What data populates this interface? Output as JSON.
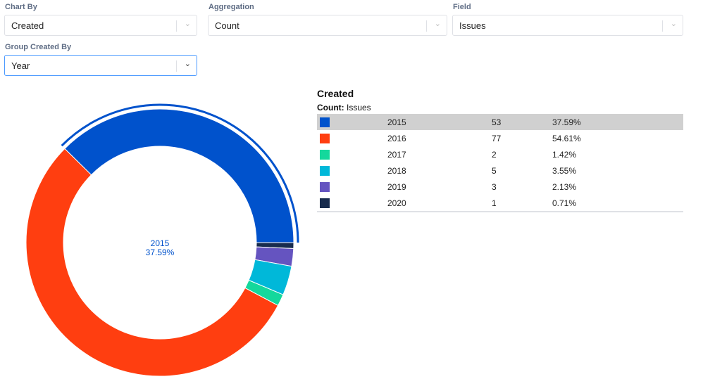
{
  "controls": {
    "chart_by": {
      "label": "Chart By",
      "value": "Created"
    },
    "aggregation": {
      "label": "Aggregation",
      "value": "Count"
    },
    "field": {
      "label": "Field",
      "value": "Issues"
    },
    "group_by": {
      "label": "Group Created By",
      "value": "Year"
    }
  },
  "chart_data": {
    "type": "pie",
    "donut": true,
    "title": "Created",
    "subtitle_key": "Count:",
    "subtitle_value": "Issues",
    "categories": [
      "2015",
      "2016",
      "2017",
      "2018",
      "2019",
      "2020"
    ],
    "values": [
      53,
      77,
      2,
      5,
      3,
      1
    ],
    "percents": [
      "37.59%",
      "54.61%",
      "1.42%",
      "3.55%",
      "2.13%",
      "0.71%"
    ],
    "colors": [
      "#0052cc",
      "#ff3e10",
      "#14d89c",
      "#00b8d9",
      "#6554c0",
      "#172b4d"
    ],
    "highlighted": "2015",
    "center_label": {
      "category": "2015",
      "percent": "37.59%"
    }
  }
}
